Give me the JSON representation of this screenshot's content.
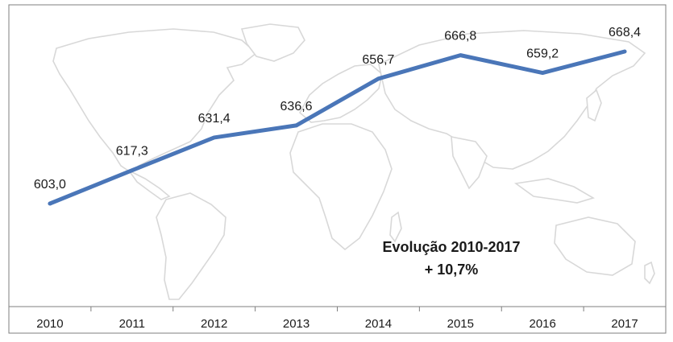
{
  "chart_data": {
    "type": "line",
    "categories": [
      "2010",
      "2011",
      "2012",
      "2013",
      "2014",
      "2015",
      "2016",
      "2017"
    ],
    "series": [
      {
        "values": [
          603.0,
          617.3,
          631.4,
          636.6,
          656.7,
          666.8,
          659.2,
          668.4
        ]
      }
    ],
    "data_labels": [
      "603,0",
      "617,3",
      "631,4",
      "636,6",
      "656,7",
      "666,8",
      "659,2",
      "668,4"
    ],
    "annotation": [
      "Evolução 2010-2017",
      "+ 10,7%"
    ],
    "ylim": [
      590,
      680
    ],
    "grid": false,
    "line_color": "#4a76b8",
    "background": "world-map"
  }
}
